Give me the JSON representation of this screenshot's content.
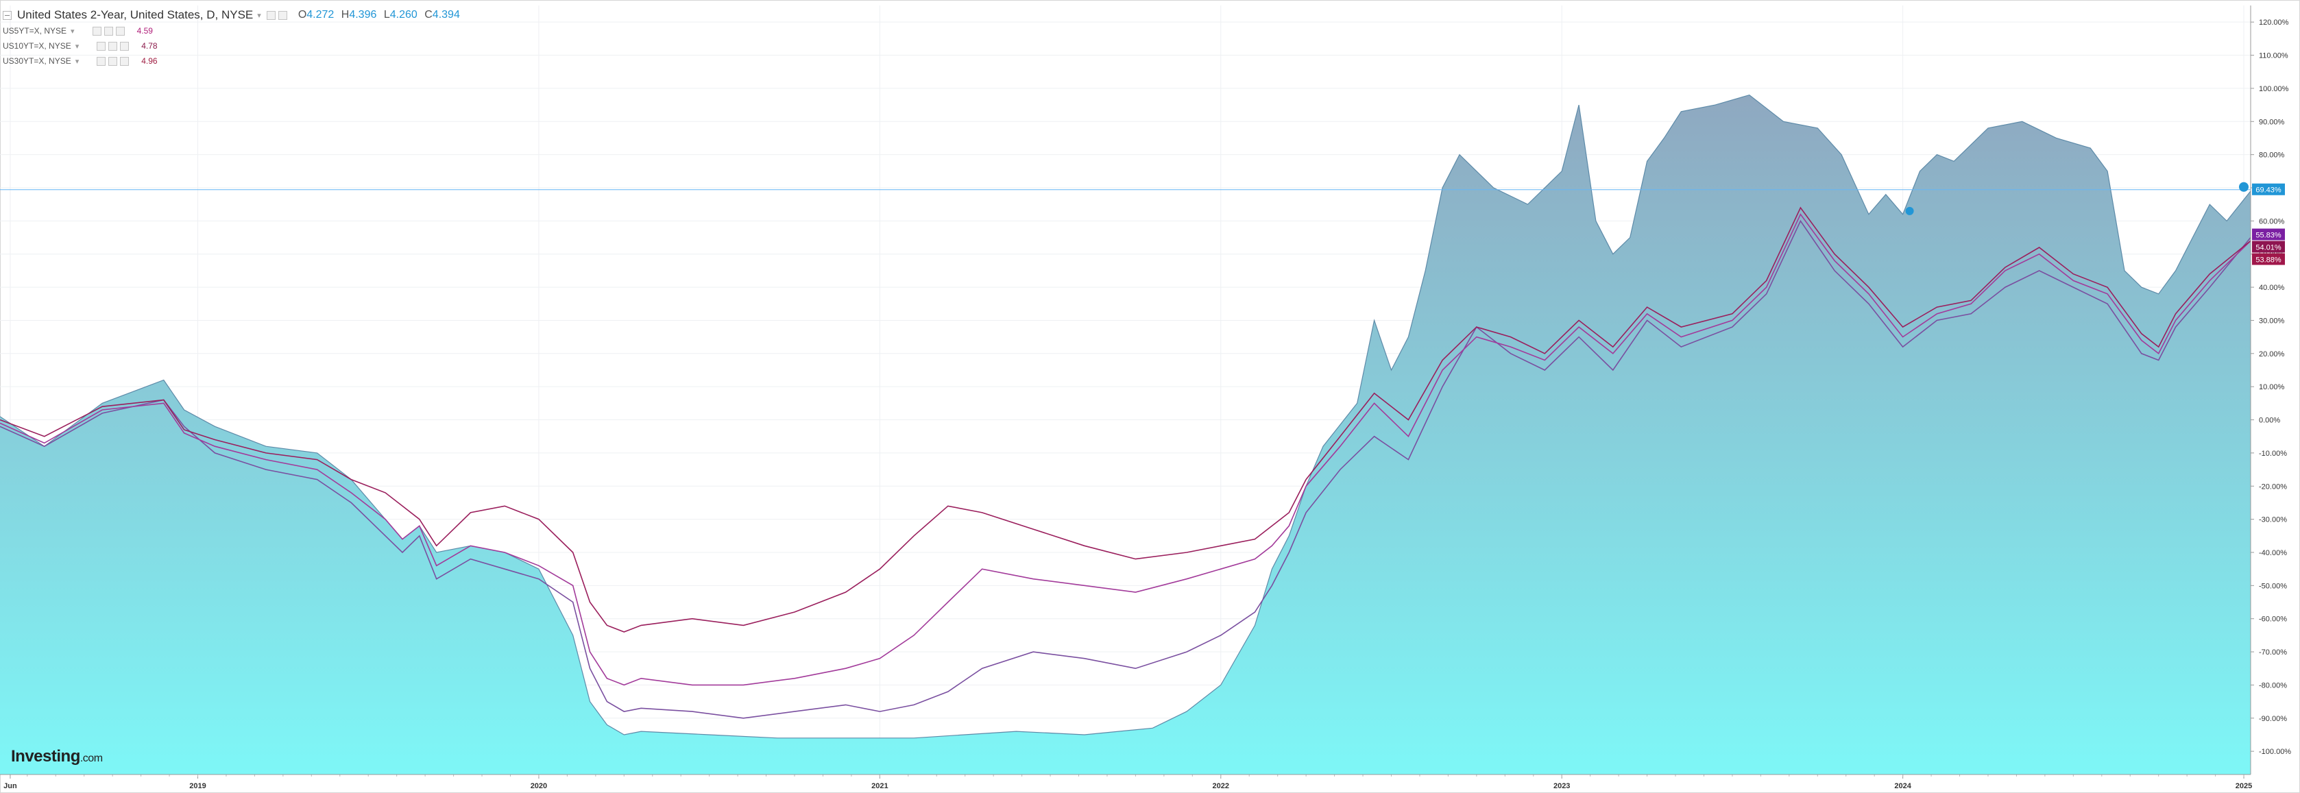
{
  "legend": {
    "main": {
      "title": "United States 2-Year, United States, D, NYSE",
      "open_label": "O",
      "open": "4.272",
      "high_label": "H",
      "high": "4.396",
      "low_label": "L",
      "low": "4.260",
      "close_label": "C",
      "close": "4.394"
    },
    "series": [
      {
        "name": "US5YT=X, NYSE",
        "value": "4.59",
        "color": "#b0207a"
      },
      {
        "name": "US10YT=X, NYSE",
        "value": "4.78",
        "color": "#8c1c4c"
      },
      {
        "name": "US30YT=X, NYSE",
        "value": "4.96",
        "color": "#a01e42"
      }
    ]
  },
  "branding": {
    "logo_main": "Investing",
    "logo_suffix": ".com"
  },
  "colors": {
    "accent": "#2196d6",
    "area_top": "#8fa8c0",
    "area_bottom": "#7ef7f7",
    "area_line": "#5d8aa8",
    "us5y": "#7a4fa0",
    "us10y": "#a23a9a",
    "us30y": "#9a1e5c",
    "current_line": "#64b5f6"
  },
  "chart_data": {
    "type": "area",
    "title": "United States 2-Year, United States, D, NYSE",
    "xlabel": "",
    "ylabel": "",
    "y_unit": "%",
    "ylim": [
      -107,
      125
    ],
    "xlim": [
      2018.42,
      2025.02
    ],
    "grid": true,
    "legend_position": "top-left",
    "x_tick_labels": [
      "Jun",
      "2019",
      "2020",
      "2021",
      "2022",
      "2023",
      "2024",
      "2025"
    ],
    "x_tick_positions": [
      2018.45,
      2019.0,
      2020.0,
      2021.0,
      2022.0,
      2023.0,
      2024.0,
      2025.0
    ],
    "y_ticks": [
      120,
      110,
      100,
      90,
      80,
      70,
      60,
      50,
      40,
      30,
      20,
      10,
      0,
      -10,
      -20,
      -30,
      -40,
      -50,
      -60,
      -70,
      -80,
      -90,
      -100
    ],
    "y_tick_labels": [
      "120.00%",
      "110.00%",
      "100.00%",
      "90.00%",
      "80.00%",
      "70.00%",
      "60.00%",
      "50.00%",
      "40.00%",
      "30.00%",
      "20.00%",
      "10.00%",
      "0.00%",
      "-10.00%",
      "-20.00%",
      "-30.00%",
      "-40.00%",
      "-50.00%",
      "-60.00%",
      "-70.00%",
      "-80.00%",
      "-90.00%",
      "-100.00%"
    ],
    "current_labels": [
      {
        "text": "69.43%",
        "value": 69.43,
        "color": "#2196d6"
      },
      {
        "text": "55.83%",
        "value": 55.83,
        "color": "#7b1fa2"
      },
      {
        "text": "54.01%",
        "value": 54.01,
        "color": "#8e1450"
      },
      {
        "text": "53.88%",
        "value": 53.88,
        "color": "#a0174a"
      }
    ],
    "series": [
      {
        "name": "United States 2-Year",
        "kind": "area",
        "x": [
          2018.42,
          2018.55,
          2018.72,
          2018.9,
          2018.96,
          2019.05,
          2019.2,
          2019.35,
          2019.45,
          2019.55,
          2019.6,
          2019.65,
          2019.7,
          2019.8,
          2019.9,
          2020.0,
          2020.1,
          2020.15,
          2020.2,
          2020.25,
          2020.3,
          2020.5,
          2020.7,
          2020.9,
          2021.1,
          2021.4,
          2021.6,
          2021.8,
          2021.9,
          2022.0,
          2022.1,
          2022.15,
          2022.2,
          2022.25,
          2022.3,
          2022.4,
          2022.45,
          2022.5,
          2022.55,
          2022.6,
          2022.65,
          2022.7,
          2022.75,
          2022.8,
          2022.9,
          2023.0,
          2023.05,
          2023.1,
          2023.15,
          2023.2,
          2023.25,
          2023.3,
          2023.35,
          2023.45,
          2023.55,
          2023.65,
          2023.75,
          2023.82,
          2023.9,
          2023.95,
          2024.0,
          2024.05,
          2024.1,
          2024.15,
          2024.25,
          2024.35,
          2024.45,
          2024.55,
          2024.6,
          2024.65,
          2024.7,
          2024.75,
          2024.8,
          2024.85,
          2024.9,
          2024.95,
          2025.02
        ],
        "y": [
          1,
          -8,
          5,
          12,
          3,
          -2,
          -8,
          -10,
          -18,
          -30,
          -36,
          -32,
          -40,
          -38,
          -40,
          -45,
          -65,
          -85,
          -92,
          -95,
          -94,
          -95,
          -96,
          -96,
          -96,
          -94,
          -95,
          -93,
          -88,
          -80,
          -62,
          -45,
          -35,
          -20,
          -8,
          5,
          30,
          15,
          25,
          45,
          70,
          80,
          75,
          70,
          65,
          75,
          95,
          60,
          50,
          55,
          78,
          85,
          93,
          95,
          98,
          90,
          88,
          80,
          62,
          68,
          62,
          75,
          80,
          78,
          88,
          90,
          85,
          82,
          75,
          45,
          40,
          38,
          45,
          55,
          65,
          60,
          69
        ]
      },
      {
        "name": "US5YT=X, NYSE",
        "kind": "line",
        "x": [
          2018.42,
          2018.55,
          2018.72,
          2018.9,
          2018.96,
          2019.05,
          2019.2,
          2019.35,
          2019.45,
          2019.55,
          2019.6,
          2019.65,
          2019.7,
          2019.8,
          2019.9,
          2020.0,
          2020.1,
          2020.15,
          2020.2,
          2020.25,
          2020.3,
          2020.45,
          2020.6,
          2020.75,
          2020.9,
          2021.0,
          2021.1,
          2021.2,
          2021.3,
          2021.45,
          2021.6,
          2021.75,
          2021.9,
          2022.0,
          2022.1,
          2022.15,
          2022.2,
          2022.25,
          2022.35,
          2022.45,
          2022.55,
          2022.65,
          2022.75,
          2022.85,
          2022.95,
          2023.05,
          2023.15,
          2023.25,
          2023.35,
          2023.5,
          2023.6,
          2023.7,
          2023.8,
          2023.9,
          2024.0,
          2024.1,
          2024.2,
          2024.3,
          2024.4,
          2024.5,
          2024.6,
          2024.7,
          2024.75,
          2024.8,
          2024.9,
          2025.02
        ],
        "y": [
          -2,
          -8,
          2,
          6,
          -2,
          -10,
          -15,
          -18,
          -25,
          -35,
          -40,
          -35,
          -48,
          -42,
          -45,
          -48,
          -55,
          -75,
          -85,
          -88,
          -87,
          -88,
          -90,
          -88,
          -86,
          -88,
          -86,
          -82,
          -75,
          -70,
          -72,
          -75,
          -70,
          -65,
          -58,
          -50,
          -40,
          -28,
          -15,
          -5,
          -12,
          10,
          28,
          20,
          15,
          25,
          15,
          30,
          22,
          28,
          38,
          60,
          45,
          35,
          22,
          30,
          32,
          40,
          45,
          40,
          35,
          20,
          18,
          28,
          40,
          55
        ]
      },
      {
        "name": "US10YT=X, NYSE",
        "kind": "line",
        "x": [
          2018.42,
          2018.55,
          2018.72,
          2018.9,
          2018.96,
          2019.05,
          2019.2,
          2019.35,
          2019.45,
          2019.55,
          2019.6,
          2019.65,
          2019.7,
          2019.8,
          2019.9,
          2020.0,
          2020.1,
          2020.15,
          2020.2,
          2020.25,
          2020.3,
          2020.45,
          2020.6,
          2020.75,
          2020.9,
          2021.0,
          2021.1,
          2021.2,
          2021.3,
          2021.45,
          2021.6,
          2021.75,
          2021.9,
          2022.0,
          2022.1,
          2022.15,
          2022.2,
          2022.25,
          2022.35,
          2022.45,
          2022.55,
          2022.65,
          2022.75,
          2022.85,
          2022.95,
          2023.05,
          2023.15,
          2023.25,
          2023.35,
          2023.5,
          2023.6,
          2023.7,
          2023.8,
          2023.9,
          2024.0,
          2024.1,
          2024.2,
          2024.3,
          2024.4,
          2024.5,
          2024.6,
          2024.7,
          2024.75,
          2024.8,
          2024.9,
          2025.02
        ],
        "y": [
          -1,
          -7,
          3,
          5,
          -4,
          -8,
          -12,
          -15,
          -22,
          -30,
          -36,
          -32,
          -44,
          -38,
          -40,
          -44,
          -50,
          -70,
          -78,
          -80,
          -78,
          -80,
          -80,
          -78,
          -75,
          -72,
          -65,
          -55,
          -45,
          -48,
          -50,
          -52,
          -48,
          -45,
          -42,
          -38,
          -32,
          -20,
          -8,
          5,
          -5,
          15,
          25,
          22,
          18,
          28,
          20,
          32,
          25,
          30,
          40,
          62,
          48,
          38,
          25,
          32,
          35,
          45,
          50,
          42,
          38,
          24,
          20,
          30,
          42,
          54
        ]
      },
      {
        "name": "US30YT=X, NYSE",
        "kind": "line",
        "x": [
          2018.42,
          2018.55,
          2018.72,
          2018.9,
          2018.96,
          2019.05,
          2019.2,
          2019.35,
          2019.45,
          2019.55,
          2019.6,
          2019.65,
          2019.7,
          2019.8,
          2019.9,
          2020.0,
          2020.1,
          2020.15,
          2020.2,
          2020.25,
          2020.3,
          2020.45,
          2020.6,
          2020.75,
          2020.9,
          2021.0,
          2021.1,
          2021.2,
          2021.3,
          2021.45,
          2021.6,
          2021.75,
          2021.9,
          2022.0,
          2022.1,
          2022.15,
          2022.2,
          2022.25,
          2022.35,
          2022.45,
          2022.55,
          2022.65,
          2022.75,
          2022.85,
          2022.95,
          2023.05,
          2023.15,
          2023.25,
          2023.35,
          2023.5,
          2023.6,
          2023.7,
          2023.8,
          2023.9,
          2024.0,
          2024.1,
          2024.2,
          2024.3,
          2024.4,
          2024.5,
          2024.6,
          2024.7,
          2024.75,
          2024.8,
          2024.9,
          2025.02
        ],
        "y": [
          0,
          -5,
          4,
          6,
          -3,
          -6,
          -10,
          -12,
          -18,
          -22,
          -26,
          -30,
          -38,
          -28,
          -26,
          -30,
          -40,
          -55,
          -62,
          -64,
          -62,
          -60,
          -62,
          -58,
          -52,
          -45,
          -35,
          -26,
          -28,
          -33,
          -38,
          -42,
          -40,
          -38,
          -36,
          -32,
          -28,
          -18,
          -5,
          8,
          0,
          18,
          28,
          25,
          20,
          30,
          22,
          34,
          28,
          32,
          42,
          64,
          50,
          40,
          28,
          34,
          36,
          46,
          52,
          44,
          40,
          26,
          22,
          32,
          44,
          54
        ]
      }
    ]
  }
}
